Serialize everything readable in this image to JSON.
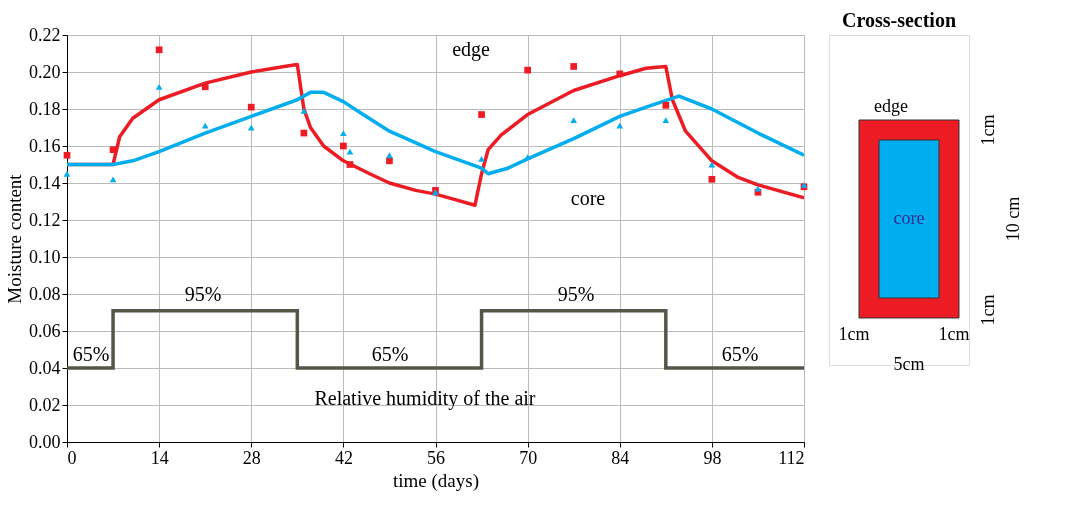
{
  "chart_data": [
    {
      "type": "line",
      "xlabel": "time (days)",
      "ylabel": "Moisture content",
      "xlim": [
        0,
        112
      ],
      "xticks": [
        0,
        14,
        28,
        42,
        56,
        70,
        84,
        98,
        112
      ],
      "ylim": [
        0,
        0.22
      ],
      "yticks": [
        {
          "value": 0,
          "label": "0.00"
        },
        {
          "value": 0.02,
          "label": "0.02"
        },
        {
          "value": 0.04,
          "label": "0.04"
        },
        {
          "value": 0.06,
          "label": "0.06"
        },
        {
          "value": 0.08,
          "label": "0.08"
        },
        {
          "value": 0.1,
          "label": "0.10"
        },
        {
          "value": 0.12,
          "label": "0.12"
        },
        {
          "value": 0.14,
          "label": "0.14"
        },
        {
          "value": 0.16,
          "label": "0.16"
        },
        {
          "value": 0.18,
          "label": "0.18"
        },
        {
          "value": 0.2,
          "label": "0.20"
        },
        {
          "value": 0.22,
          "label": "0.22"
        }
      ],
      "grid": true,
      "series": [
        {
          "type": "line",
          "color": "#ed1c24",
          "x": [
            0,
            7,
            8,
            10,
            14,
            21,
            28,
            33,
            35,
            36,
            37,
            39,
            42,
            46,
            49,
            53,
            56,
            59,
            62,
            63,
            64,
            66,
            70,
            77,
            84,
            88,
            91,
            92,
            94,
            98,
            102,
            105,
            112
          ],
          "values": [
            0.15,
            0.15,
            0.165,
            0.175,
            0.185,
            0.194,
            0.2,
            0.203,
            0.204,
            0.18,
            0.17,
            0.16,
            0.152,
            0.145,
            0.14,
            0.136,
            0.134,
            0.131,
            0.128,
            0.145,
            0.158,
            0.166,
            0.177,
            0.19,
            0.198,
            0.202,
            0.203,
            0.185,
            0.168,
            0.152,
            0.143,
            0.139,
            0.132
          ]
        },
        {
          "type": "line",
          "color": "#00aeef",
          "x": [
            0,
            7,
            10,
            14,
            21,
            28,
            35,
            37,
            39,
            42,
            45,
            49,
            56,
            63,
            64,
            67,
            70,
            77,
            84,
            88,
            93,
            98,
            105,
            112
          ],
          "values": [
            0.15,
            0.15,
            0.152,
            0.157,
            0.167,
            0.176,
            0.185,
            0.189,
            0.189,
            0.184,
            0.177,
            0.168,
            0.157,
            0.148,
            0.145,
            0.148,
            0.153,
            0.164,
            0.176,
            0.181,
            0.187,
            0.18,
            0.167,
            0.155
          ]
        },
        {
          "type": "scatter",
          "marker": "square",
          "color": "#ed1c24",
          "x": [
            0,
            7,
            14,
            21,
            28,
            36,
            42,
            43,
            49,
            56,
            63,
            70,
            77,
            84,
            91,
            98,
            105,
            112
          ],
          "values": [
            0.155,
            0.158,
            0.212,
            0.192,
            0.181,
            0.167,
            0.16,
            0.15,
            0.152,
            0.136,
            0.177,
            0.201,
            0.203,
            0.199,
            0.182,
            0.142,
            0.135,
            0.138
          ]
        },
        {
          "type": "scatter",
          "marker": "triangle",
          "color": "#00aeef",
          "x": [
            0,
            7,
            14,
            21,
            28,
            36,
            42,
            43,
            49,
            56,
            63,
            70,
            77,
            84,
            91,
            98,
            105,
            112
          ],
          "values": [
            0.145,
            0.142,
            0.192,
            0.171,
            0.17,
            0.179,
            0.167,
            0.157,
            0.155,
            0.135,
            0.153,
            0.154,
            0.174,
            0.171,
            0.174,
            0.15,
            0.137,
            0.139
          ]
        },
        {
          "type": "step",
          "color": "#555548",
          "x": [
            0,
            7,
            35,
            63,
            91,
            112
          ],
          "values": [
            0.04,
            0.071,
            0.04,
            0.071,
            0.04,
            0.04
          ]
        }
      ],
      "annotations": [
        "edge",
        "core",
        "65%",
        "95%",
        "65%",
        "95%",
        "65%",
        "Relative humidity of the air"
      ]
    },
    {
      "type": "other",
      "title": "Cross-section",
      "annotations": [
        "edge",
        "core",
        "1cm",
        "1cm",
        "10 cm",
        "1cm",
        "1cm",
        "5cm"
      ]
    }
  ]
}
